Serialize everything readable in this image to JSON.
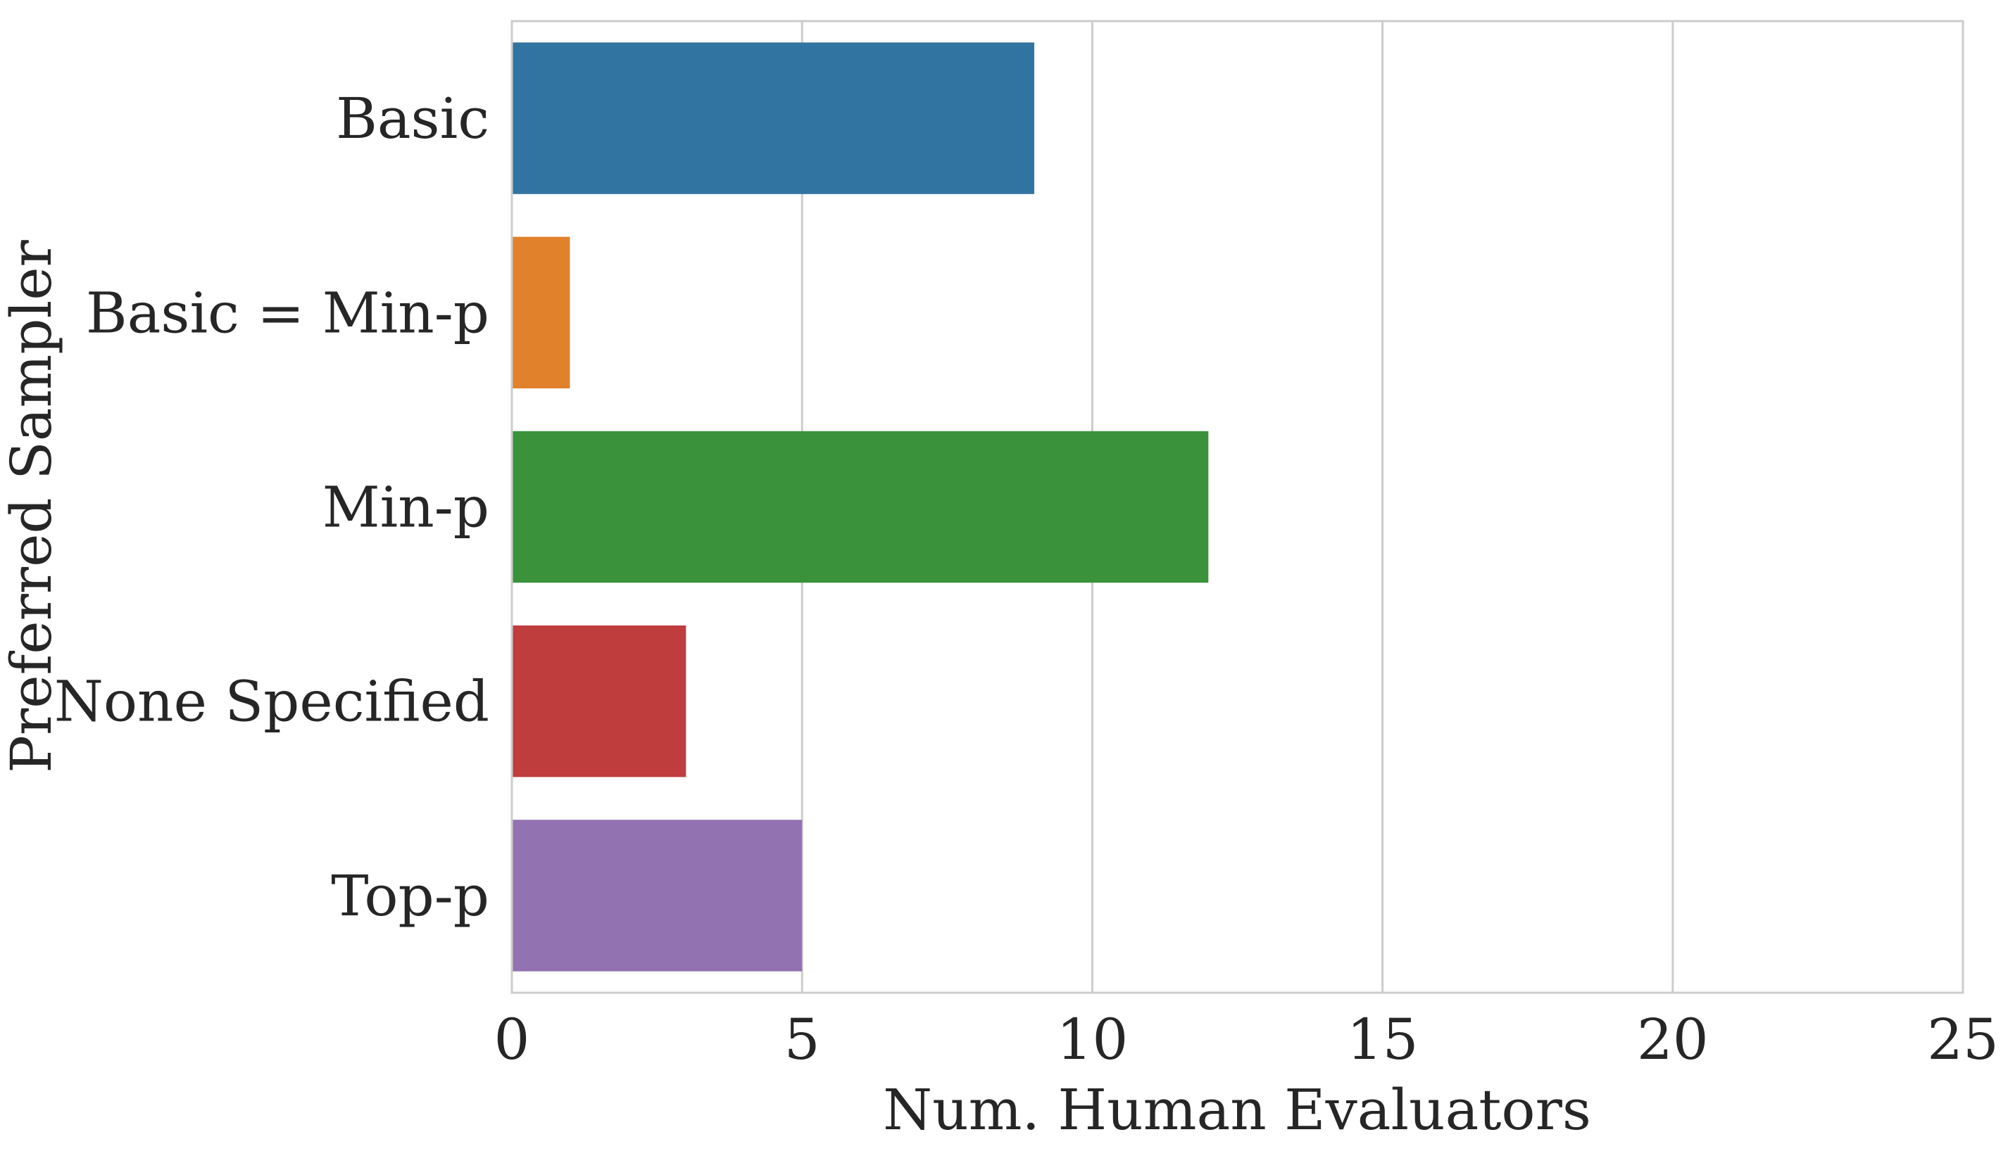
{
  "chart_data": {
    "type": "bar",
    "orientation": "horizontal",
    "categories": [
      "Basic",
      "Basic = Min-p",
      "Min-p",
      "None Specified",
      "Top-p"
    ],
    "values": [
      9,
      1,
      12,
      3,
      5
    ],
    "colors": [
      "#3274a1",
      "#e1812c",
      "#3a923a",
      "#c03d3e",
      "#9372b2"
    ],
    "xlabel": "Num. Human Evaluators",
    "ylabel": "Preferred Sampler",
    "xlim": [
      0,
      25
    ],
    "xticks": [
      0,
      5,
      10,
      15,
      20,
      25
    ],
    "grid": "vertical",
    "legend": "none"
  }
}
